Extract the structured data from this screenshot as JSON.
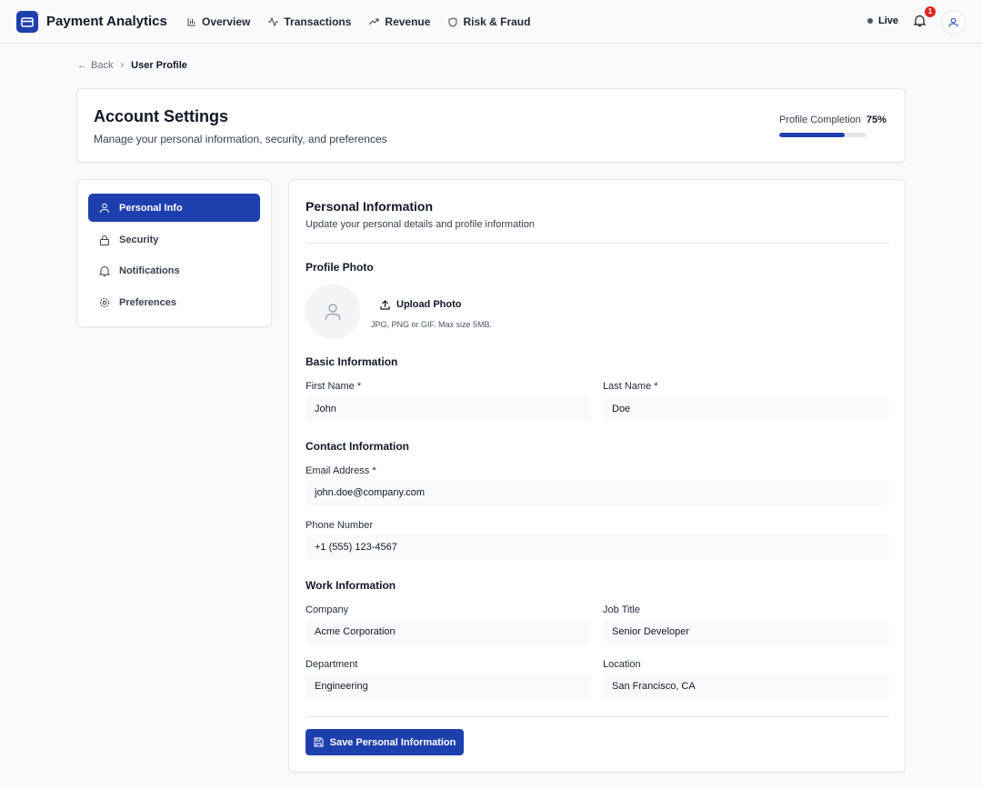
{
  "app": {
    "title": "Payment Analytics",
    "nav": [
      "Overview",
      "Transactions",
      "Revenue",
      "Risk & Fraud"
    ],
    "status": "Live",
    "notification_count": "1"
  },
  "breadcrumb": {
    "back": "Back",
    "current": "User Profile"
  },
  "header_card": {
    "title": "Account Settings",
    "subtitle": "Manage your personal information, security, and preferences",
    "completion_label": "Profile Completion",
    "completion_value": "75%",
    "completion_percent": 75
  },
  "sidebar": {
    "items": [
      {
        "label": "Personal Info",
        "icon": "user-icon",
        "active": true
      },
      {
        "label": "Security",
        "icon": "lock-icon"
      },
      {
        "label": "Notifications",
        "icon": "bell-icon"
      },
      {
        "label": "Preferences",
        "icon": "gear-icon"
      }
    ]
  },
  "main": {
    "title": "Personal Information",
    "subtitle": "Update your personal details and profile information",
    "photo": {
      "heading": "Profile Photo",
      "upload": "Upload Photo",
      "hint": "JPG, PNG or GIF. Max size 5MB."
    },
    "basic": {
      "heading": "Basic Information",
      "first_label": "First Name *",
      "first": "John",
      "last_label": "Last Name *",
      "last": "Doe"
    },
    "contact": {
      "heading": "Contact Information",
      "email_label": "Email Address *",
      "email": "john.doe@company.com",
      "phone_label": "Phone Number",
      "phone": "+1 (555) 123-4567"
    },
    "work": {
      "heading": "Work Information",
      "company_label": "Company",
      "company": "Acme Corporation",
      "job_label": "Job Title",
      "job": "Senior Developer",
      "dept_label": "Department",
      "dept": "Engineering",
      "loc_label": "Location",
      "loc": "San Francisco, CA"
    },
    "save": "Save Personal Information"
  },
  "colors": {
    "accent": "#1e40af",
    "badge": "#dc2626"
  }
}
